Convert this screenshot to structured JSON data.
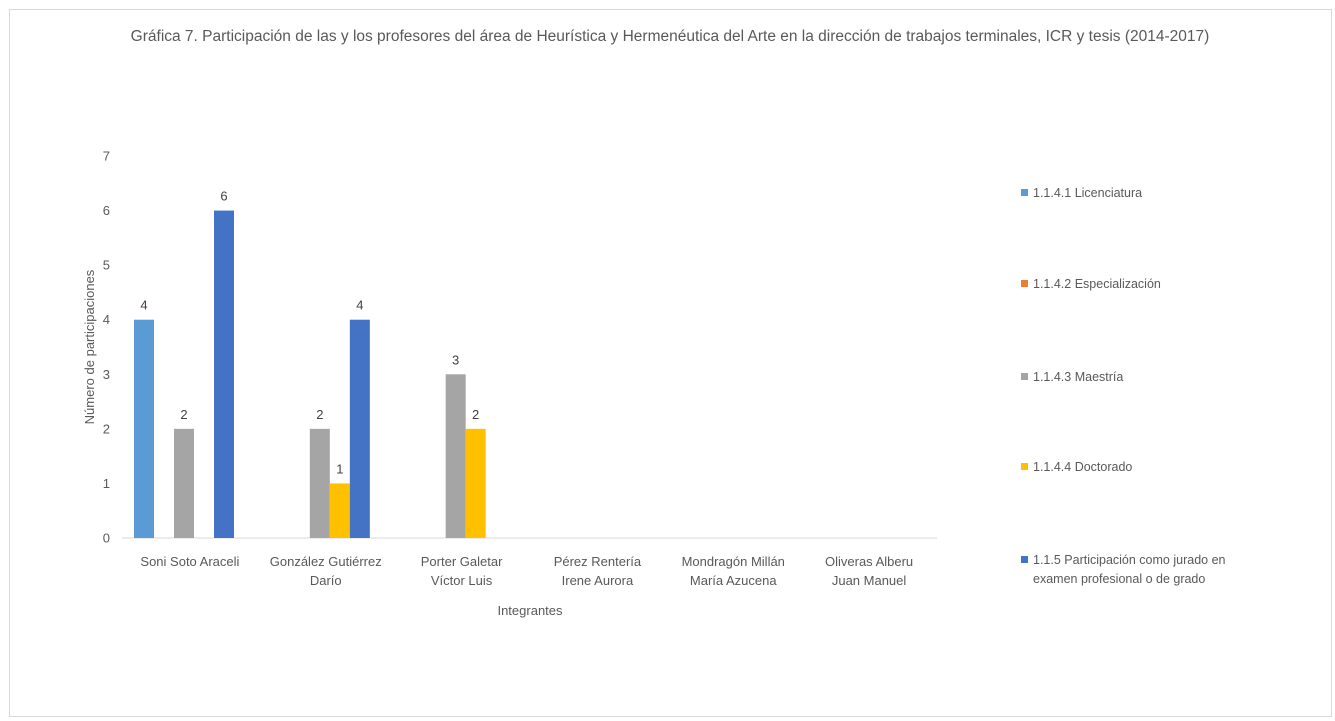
{
  "chart_data": {
    "type": "bar",
    "title": "Gráfica 7. Participación de las y los profesores del área de  Heurística y Hermenéutica del Arte en la dirección de trabajos terminales, ICR y tesis (2014-2017)",
    "xlabel": "Integrantes",
    "ylabel": "Número de participaciones",
    "ylim": [
      0,
      7
    ],
    "yticks": [
      0,
      1,
      2,
      3,
      4,
      5,
      6,
      7
    ],
    "grid": false,
    "legend_position": "right",
    "categories": [
      [
        "Soni Soto Araceli"
      ],
      [
        "González Gutiérrez",
        "Darío"
      ],
      [
        "Porter Galetar",
        "Víctor Luis"
      ],
      [
        "Pérez Rentería",
        "Irene Aurora"
      ],
      [
        "Mondragón Millán",
        "María Azucena"
      ],
      [
        "Oliveras Alberu",
        "Juan Manuel"
      ]
    ],
    "series": [
      {
        "name": "1.1.4.1 Licenciatura",
        "legend_lines": [
          "1.1.4.1 Licenciatura"
        ],
        "color": "#5b9bd5",
        "values": [
          4,
          0,
          0,
          0,
          0,
          0
        ]
      },
      {
        "name": "1.1.4.2 Especialización",
        "legend_lines": [
          "1.1.4.2 Especialización"
        ],
        "color": "#ed7d31",
        "values": [
          0,
          0,
          0,
          0,
          0,
          0
        ]
      },
      {
        "name": "1.1.4.3 Maestría",
        "legend_lines": [
          "1.1.4.3 Maestría"
        ],
        "color": "#a5a5a5",
        "values": [
          2,
          2,
          3,
          0,
          0,
          0
        ]
      },
      {
        "name": "1.1.4.4 Doctorado",
        "legend_lines": [
          "1.1.4.4 Doctorado"
        ],
        "color": "#ffc000",
        "values": [
          0,
          1,
          2,
          0,
          0,
          0
        ]
      },
      {
        "name": "1.1.5 Participación como jurado en examen profesional o de grado",
        "legend_lines": [
          "1.1.5 Participación como jurado en",
          "examen profesional o de grado"
        ],
        "color": "#4472c4",
        "values": [
          6,
          4,
          0,
          0,
          0,
          0
        ]
      }
    ]
  }
}
